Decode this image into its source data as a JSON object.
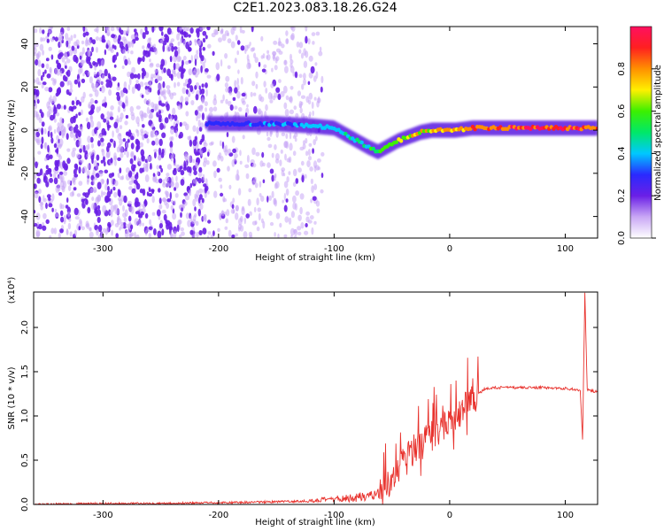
{
  "title": "C2E1.2023.083.18.26.G24",
  "chart_data": [
    {
      "type": "heatmap",
      "xlabel": "Height of straight line (km)",
      "ylabel": "Frequency (Hz)",
      "xlim": [
        -360,
        128
      ],
      "ylim": [
        -50,
        48
      ],
      "xticks": [
        -300,
        -200,
        -100,
        0,
        100
      ],
      "yticks": [
        -40,
        -20,
        0,
        20,
        40
      ],
      "colorbar": {
        "label": "Normalized spectral amplitude",
        "range": [
          0,
          1
        ],
        "ticks": [
          0.0,
          0.2,
          0.4,
          0.6,
          0.8
        ],
        "colors": [
          "#ffffff",
          "#c9a7f5",
          "#6a1fe6",
          "#2a2aff",
          "#00c8ff",
          "#00e868",
          "#3cf000",
          "#fff000",
          "#ff9000",
          "#ff2020",
          "#ff1060"
        ]
      },
      "ridge": {
        "x": [
          -210,
          -180,
          -150,
          -120,
          -100,
          -90,
          -80,
          -70,
          -62,
          -55,
          -45,
          -35,
          -25,
          -15,
          -5,
          5,
          20,
          40,
          60,
          80,
          100,
          115,
          128
        ],
        "y": [
          3,
          3,
          3,
          2,
          1,
          -2,
          -5,
          -8,
          -10,
          -8,
          -5,
          -3,
          -1,
          0,
          0,
          0,
          1,
          1,
          1,
          1,
          1,
          1,
          1
        ],
        "amplitude": [
          0.3,
          0.35,
          0.35,
          0.38,
          0.4,
          0.45,
          0.5,
          0.5,
          0.55,
          0.6,
          0.65,
          0.7,
          0.72,
          0.75,
          0.78,
          0.8,
          0.85,
          0.9,
          0.92,
          0.92,
          0.92,
          0.9,
          0.85
        ]
      }
    },
    {
      "type": "line",
      "xlabel": "Height of straight line (km)",
      "ylabel": "SNR (10 * v/v)",
      "yscale_label": "(x10⁴)",
      "xlim": [
        -360,
        128
      ],
      "ylim": [
        0,
        2.4
      ],
      "xticks": [
        -300,
        -200,
        -100,
        0,
        100
      ],
      "yticks": [
        0.0,
        0.5,
        1.0,
        1.5,
        2.0
      ],
      "series": [
        {
          "color": "#e8312c",
          "x": [
            -360,
            -300,
            -250,
            -200,
            -150,
            -120,
            -100,
            -80,
            -70,
            -60,
            -50,
            -45,
            -40,
            -35,
            -30,
            -25,
            -20,
            -15,
            -10,
            -5,
            0,
            5,
            10,
            15,
            20,
            25,
            30,
            40,
            60,
            80,
            100,
            110,
            113,
            115,
            117,
            119,
            122,
            128
          ],
          "y": [
            0.0,
            0.01,
            0.01,
            0.02,
            0.03,
            0.04,
            0.06,
            0.08,
            0.1,
            0.14,
            0.25,
            0.35,
            0.5,
            0.6,
            0.62,
            0.68,
            0.72,
            0.78,
            0.85,
            0.9,
            0.95,
            1.0,
            1.05,
            1.12,
            1.2,
            1.25,
            1.3,
            1.32,
            1.32,
            1.32,
            1.31,
            1.3,
            1.28,
            0.72,
            2.4,
            1.3,
            1.28,
            1.28
          ]
        }
      ]
    }
  ]
}
